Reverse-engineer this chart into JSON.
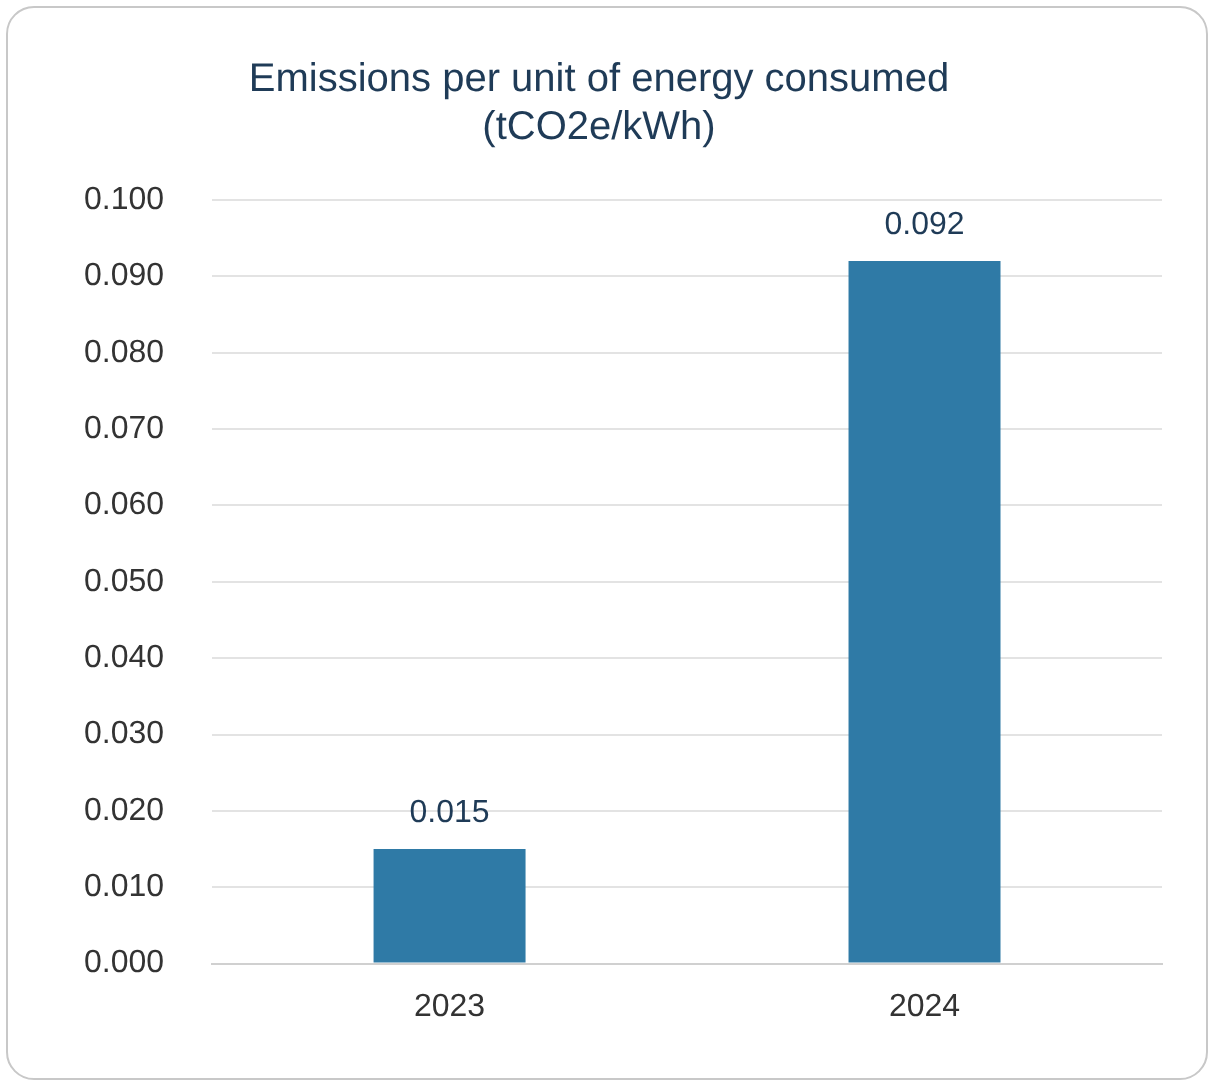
{
  "chart_data": {
    "type": "bar",
    "title": "Emissions per unit of energy consumed\n(tCO2e/kWh)",
    "categories": [
      "2023",
      "2024"
    ],
    "values": [
      0.015,
      0.092
    ],
    "color": "#2f7aa6",
    "ylim": [
      0,
      0.1
    ],
    "yticks": [
      {
        "value": 0,
        "label": "0.000"
      },
      {
        "value": 0.01,
        "label": "0.010"
      },
      {
        "value": 0.02,
        "label": "0.020"
      },
      {
        "value": 0.03,
        "label": "0.030"
      },
      {
        "value": 0.04,
        "label": "0.040"
      },
      {
        "value": 0.05,
        "label": "0.050"
      },
      {
        "value": 0.06,
        "label": "0.060"
      },
      {
        "value": 0.07,
        "label": "0.070"
      },
      {
        "value": 0.08,
        "label": "0.080"
      },
      {
        "value": 0.09,
        "label": "0.090"
      },
      {
        "value": 0.1,
        "label": "0.100"
      }
    ],
    "grid": "y",
    "data_labels": true
  }
}
